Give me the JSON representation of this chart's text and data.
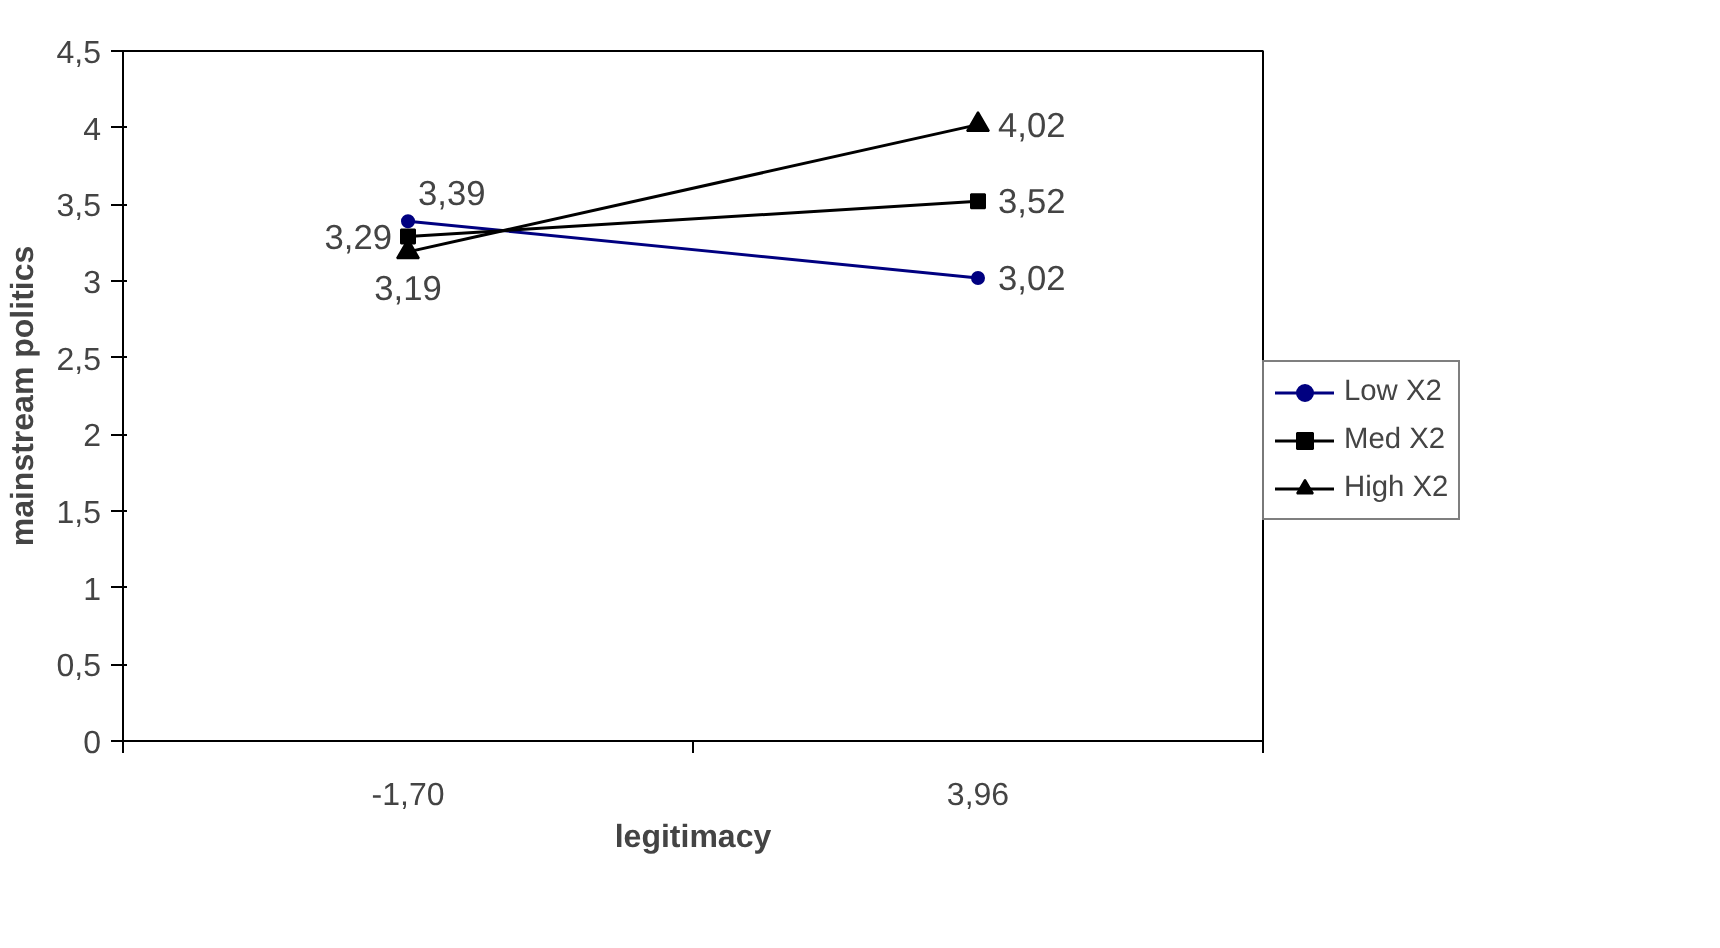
{
  "chart_data": {
    "type": "line",
    "xlabel": "legitimacy",
    "ylabel": "mainstream politics",
    "categories": [
      "-1,70",
      "3,96"
    ],
    "series": [
      {
        "name": "Low X2",
        "color": "#000080",
        "marker": "circle",
        "values": [
          3.39,
          3.02
        ],
        "value_labels": [
          "3,39",
          "3,02"
        ]
      },
      {
        "name": "Med X2",
        "color": "#000000",
        "marker": "square",
        "values": [
          3.29,
          3.52
        ],
        "value_labels": [
          "3,29",
          "3,52"
        ]
      },
      {
        "name": "High X2",
        "color": "#000000",
        "marker": "triangle",
        "values": [
          3.19,
          4.02
        ],
        "value_labels": [
          "3,19",
          "4,02"
        ]
      }
    ],
    "ylim": [
      0,
      4.5
    ],
    "yticks": [
      0,
      {
        "value": 0.5,
        "label": "0,5"
      },
      1,
      {
        "value": 1.5,
        "label": "1,5"
      },
      2,
      {
        "value": 2.5,
        "label": "2,5"
      },
      3,
      {
        "value": 3.5,
        "label": "3,5"
      },
      4,
      {
        "value": 4.5,
        "label": "4,5"
      }
    ],
    "grid": false,
    "legend": "right",
    "line_style": "solid"
  }
}
